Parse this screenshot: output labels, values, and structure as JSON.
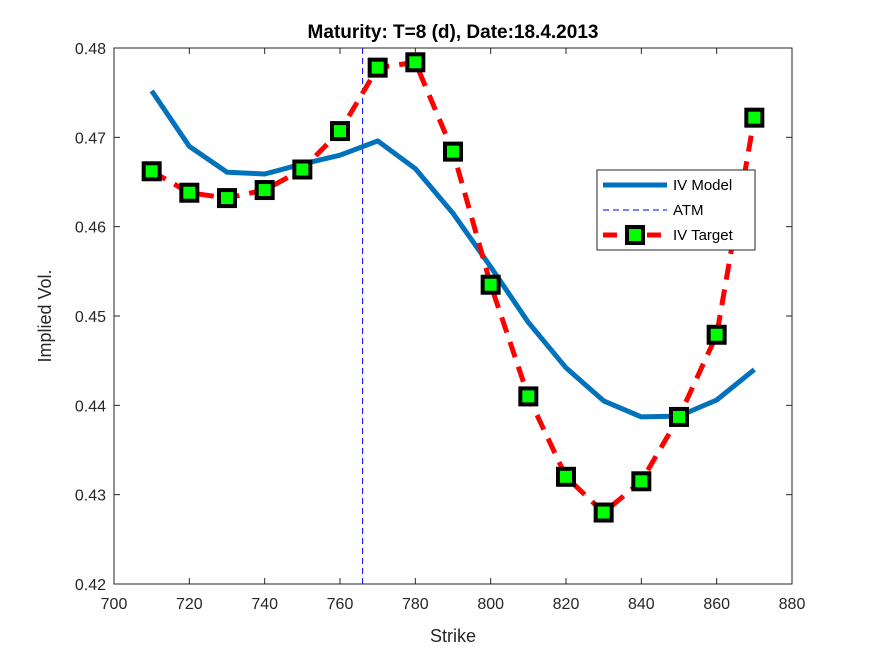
{
  "chart_data": {
    "type": "line",
    "title": "Maturity: T=8 (d), Date:18.4.2013",
    "xlabel": "Strike",
    "ylabel": "Implied Vol.",
    "xlim": [
      700,
      880
    ],
    "ylim": [
      0.42,
      0.48
    ],
    "xticks": [
      "700",
      "720",
      "740",
      "760",
      "780",
      "800",
      "820",
      "840",
      "860",
      "880"
    ],
    "yticks": [
      "0.42",
      "0.43",
      "0.44",
      "0.45",
      "0.46",
      "0.47",
      "0.48"
    ],
    "grid": false,
    "legend_position": "right",
    "series": [
      {
        "name": "IV Model",
        "color": "#0072BD",
        "style": "solid",
        "x": [
          710,
          720,
          730,
          740,
          750,
          760,
          770,
          780,
          790,
          800,
          810,
          820,
          830,
          840,
          850,
          860,
          870
        ],
        "y": [
          0.4752,
          0.469,
          0.4661,
          0.4659,
          0.467,
          0.468,
          0.4696,
          0.4665,
          0.4615,
          0.4555,
          0.4493,
          0.4442,
          0.4405,
          0.4387,
          0.4388,
          0.4406,
          0.444
        ]
      },
      {
        "name": "ATM",
        "color": "#0000FF",
        "style": "dashed-vertical",
        "x": [
          766,
          766
        ],
        "y": [
          0.42,
          0.48
        ]
      },
      {
        "name": "IV Target",
        "color": "#FF0000",
        "marker_face": "#00FF00",
        "marker_edge": "#000000",
        "style": "dashed-with-square-markers",
        "x": [
          710,
          720,
          730,
          740,
          750,
          760,
          770,
          780,
          790,
          800,
          810,
          820,
          830,
          840,
          850,
          860,
          870
        ],
        "y": [
          0.4662,
          0.4638,
          0.4632,
          0.4641,
          0.4664,
          0.4707,
          0.4778,
          0.4784,
          0.4684,
          0.4535,
          0.441,
          0.432,
          0.428,
          0.4315,
          0.4387,
          0.4479,
          0.4722
        ]
      }
    ]
  }
}
